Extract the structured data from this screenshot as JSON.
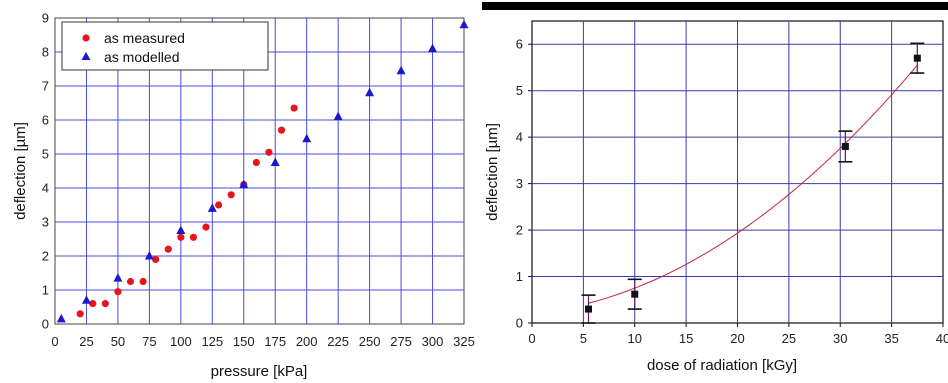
{
  "chart_data": [
    {
      "type": "scatter",
      "xlabel": "pressure [kPa]",
      "ylabel": "deflection [µm]",
      "xlim": [
        0,
        325
      ],
      "ylim": [
        0,
        9
      ],
      "xticks": [
        0,
        25,
        50,
        75,
        100,
        125,
        150,
        175,
        200,
        225,
        250,
        275,
        300,
        325
      ],
      "yticks": [
        0,
        1,
        2,
        3,
        4,
        5,
        6,
        7,
        8,
        9
      ],
      "grid": true,
      "legend": "top-left",
      "series": [
        {
          "name": "as measured",
          "marker": "circle",
          "color": "#e8141b",
          "x": [
            20,
            30,
            40,
            50,
            60,
            70,
            80,
            90,
            100,
            110,
            120,
            130,
            140,
            150,
            160,
            170,
            180,
            190
          ],
          "y": [
            0.3,
            0.6,
            0.6,
            0.95,
            1.25,
            1.25,
            1.9,
            2.2,
            2.55,
            2.55,
            2.85,
            3.5,
            3.8,
            4.1,
            4.75,
            5.05,
            5.7,
            6.35
          ]
        },
        {
          "name": "as modelled",
          "marker": "triangle",
          "color": "#1a1acc",
          "x": [
            5,
            25,
            50,
            75,
            100,
            125,
            150,
            175,
            200,
            225,
            250,
            275,
            300,
            325
          ],
          "y": [
            0.15,
            0.7,
            1.35,
            2.0,
            2.75,
            3.4,
            4.1,
            4.75,
            5.45,
            6.1,
            6.8,
            7.45,
            8.1,
            8.8
          ]
        }
      ]
    },
    {
      "type": "scatter",
      "xlabel": "dose of radiation [kGy]",
      "ylabel": "deflection [µm]",
      "xlim": [
        0,
        40
      ],
      "ylim": [
        0,
        6.5
      ],
      "xticks": [
        0,
        5,
        10,
        15,
        20,
        25,
        30,
        35,
        40
      ],
      "yticks": [
        0,
        1,
        2,
        3,
        4,
        5,
        6
      ],
      "grid": true,
      "series": [
        {
          "marker": "square",
          "color": "#111111",
          "x": [
            5.5,
            10,
            30.5,
            37.5
          ],
          "y": [
            0.3,
            0.62,
            3.8,
            5.7
          ],
          "error": [
            0.3,
            0.32,
            0.33,
            0.32
          ]
        }
      ],
      "fit": {
        "type": "quadratic",
        "color": "#c0283a",
        "coefficients": [
          0.205,
          0.0225,
          0.0032
        ],
        "x_range": [
          5.5,
          37.5
        ]
      }
    }
  ]
}
